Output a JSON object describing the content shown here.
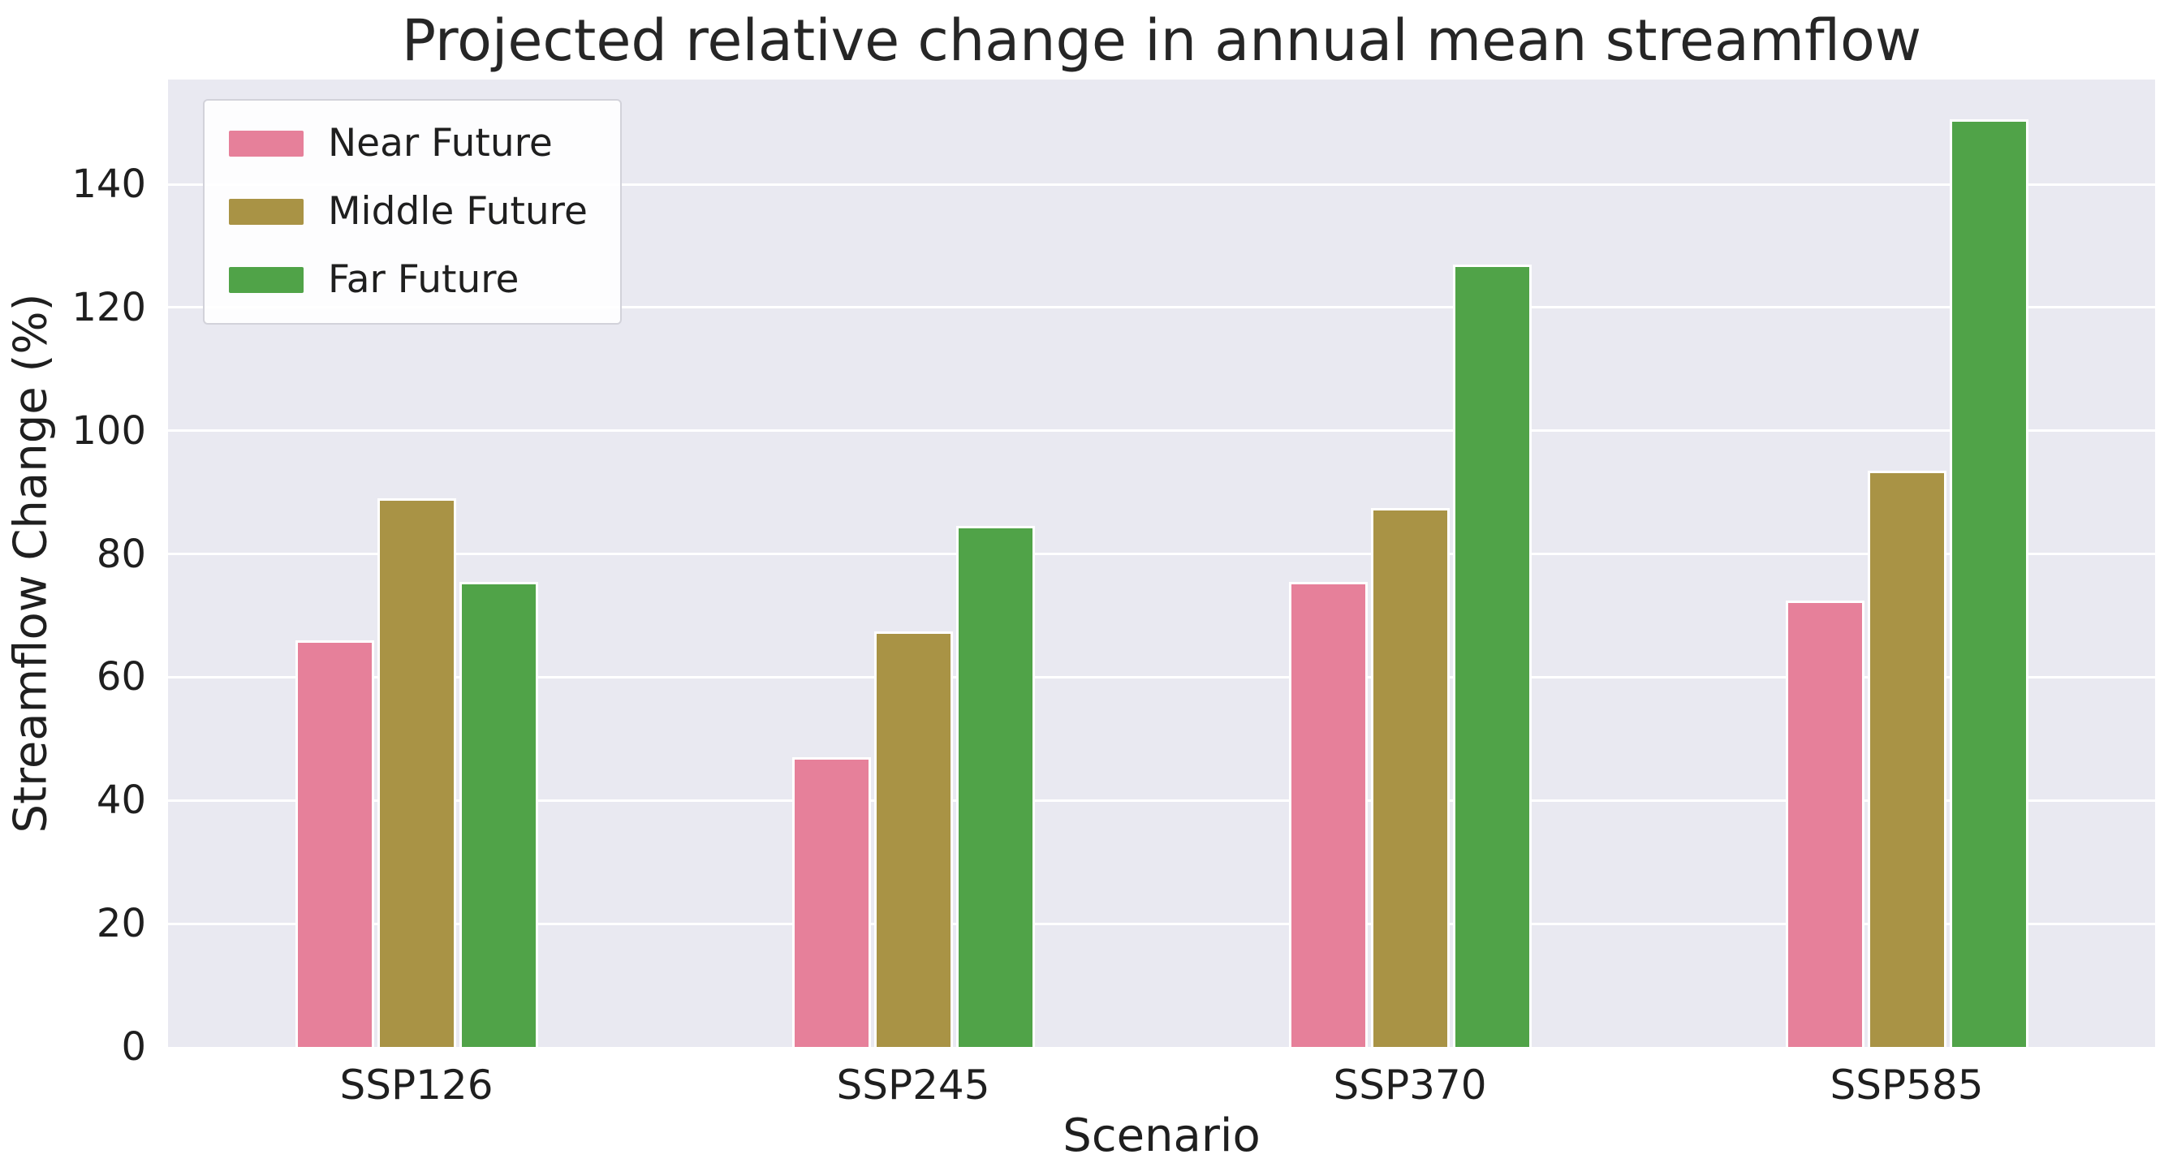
{
  "chart_data": {
    "type": "bar",
    "title": "Projected relative change in annual mean streamflow",
    "xlabel": "Scenario",
    "ylabel": "Streamflow Change (%)",
    "categories": [
      "SSP126",
      "SSP245",
      "SSP370",
      "SSP585"
    ],
    "series": [
      {
        "name": "Near Future",
        "color": "#e6809a",
        "values": [
          66,
          47,
          75.5,
          72.5
        ]
      },
      {
        "name": "Middle Future",
        "color": "#a99345",
        "values": [
          89,
          67.5,
          87.5,
          93.5
        ]
      },
      {
        "name": "Far Future",
        "color": "#50a348",
        "values": [
          75.5,
          84.5,
          127,
          150.5
        ]
      }
    ],
    "yticks": [
      0,
      20,
      40,
      60,
      80,
      100,
      120,
      140
    ],
    "ylim": [
      0,
      157
    ],
    "grid": true,
    "legend_position": "upper left",
    "plot_background": "#e9e9f1",
    "grid_color": "#ffffff",
    "text_color": "#1f1f1f"
  }
}
